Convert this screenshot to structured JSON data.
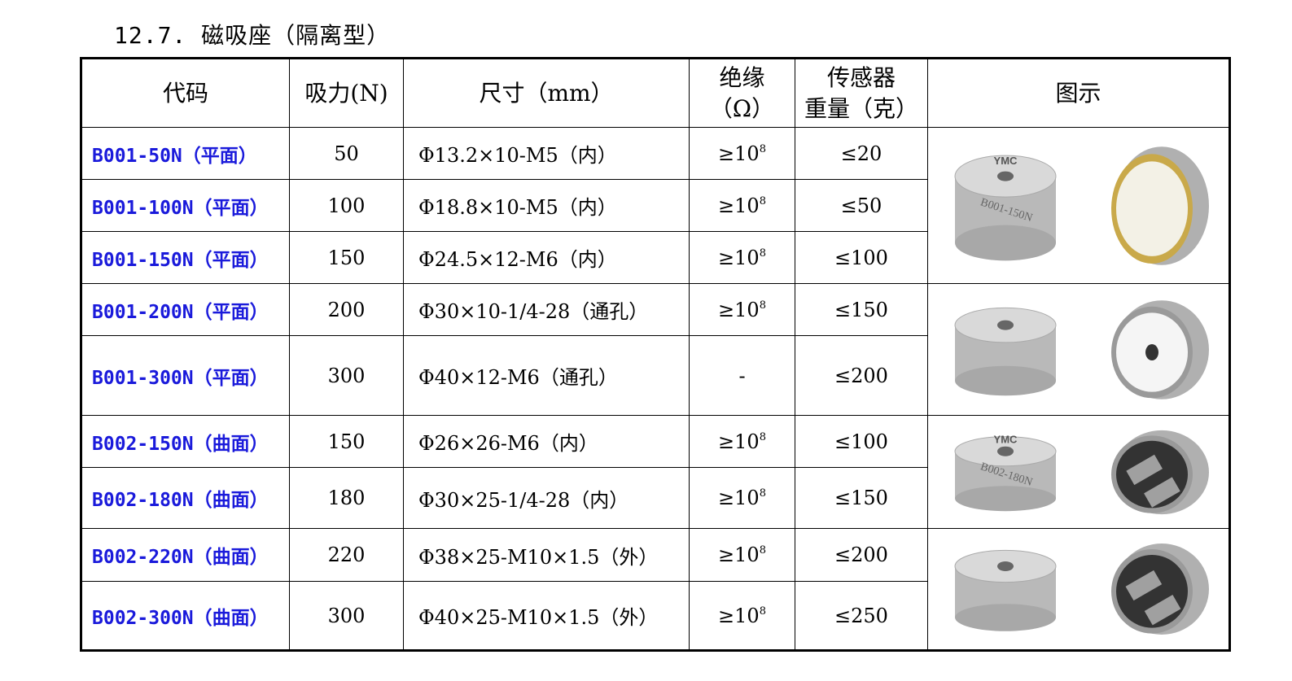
{
  "section_title": "12.7. 磁吸座（隔离型）",
  "headers": {
    "code": "代码",
    "force": "吸力(N)",
    "size": "尺寸（mm）",
    "insulation_line1": "绝缘",
    "insulation_line2": "（Ω）",
    "weight_line1": "传感器",
    "weight_line2": "重量（克）",
    "image": "图示"
  },
  "rows": [
    {
      "code": "B001-50N（平面）",
      "force": "50",
      "size": "Φ13.2×10-M5（内）",
      "insulation": {
        "base": "≥10",
        "exp": "8"
      },
      "weight": "≤20"
    },
    {
      "code": "B001-100N（平面）",
      "force": "100",
      "size": "Φ18.8×10-M5（内）",
      "insulation": {
        "base": "≥10",
        "exp": "8"
      },
      "weight": "≤50"
    },
    {
      "code": "B001-150N（平面）",
      "force": "150",
      "size": "Φ24.5×12-M6（内）",
      "insulation": {
        "base": "≥10",
        "exp": "8"
      },
      "weight": "≤100"
    },
    {
      "code": "B001-200N（平面）",
      "force": "200",
      "size": "Φ30×10-1/4-28（通孔）",
      "insulation": {
        "base": "≥10",
        "exp": "8"
      },
      "weight": "≤150"
    },
    {
      "code": "B001-300N（平面）",
      "force": "300",
      "size": "Φ40×12-M6（通孔）",
      "insulation": {
        "base": "-",
        "exp": ""
      },
      "weight": "≤200"
    },
    {
      "code": "B002-150N（曲面）",
      "force": "150",
      "size": "Φ26×26-M6（内）",
      "insulation": {
        "base": "≥10",
        "exp": "8"
      },
      "weight": "≤100"
    },
    {
      "code": "B002-180N（曲面）",
      "force": "180",
      "size": "Φ30×25-1/4-28（内）",
      "insulation": {
        "base": "≥10",
        "exp": "8"
      },
      "weight": "≤150"
    },
    {
      "code": "B002-220N（曲面）",
      "force": "220",
      "size": "Φ38×25-M10×1.5（外）",
      "insulation": {
        "base": "≥10",
        "exp": "8"
      },
      "weight": "≤200"
    },
    {
      "code": "B002-300N（曲面）",
      "force": "300",
      "size": "Φ40×25-M10×1.5（外）",
      "insulation": {
        "base": "≥10",
        "exp": "8"
      },
      "weight": "≤250"
    }
  ],
  "image_groups": [
    {
      "rows": 3,
      "type": "hex-flat",
      "labels": {
        "brand": "YMC",
        "model": "B001-150N"
      }
    },
    {
      "rows": 2,
      "type": "knurled-flat",
      "labels": {}
    },
    {
      "rows": 2,
      "type": "curved-small",
      "labels": {
        "brand": "YMC",
        "model": "B002-180N"
      }
    },
    {
      "rows": 2,
      "type": "curved-large",
      "labels": {}
    }
  ]
}
